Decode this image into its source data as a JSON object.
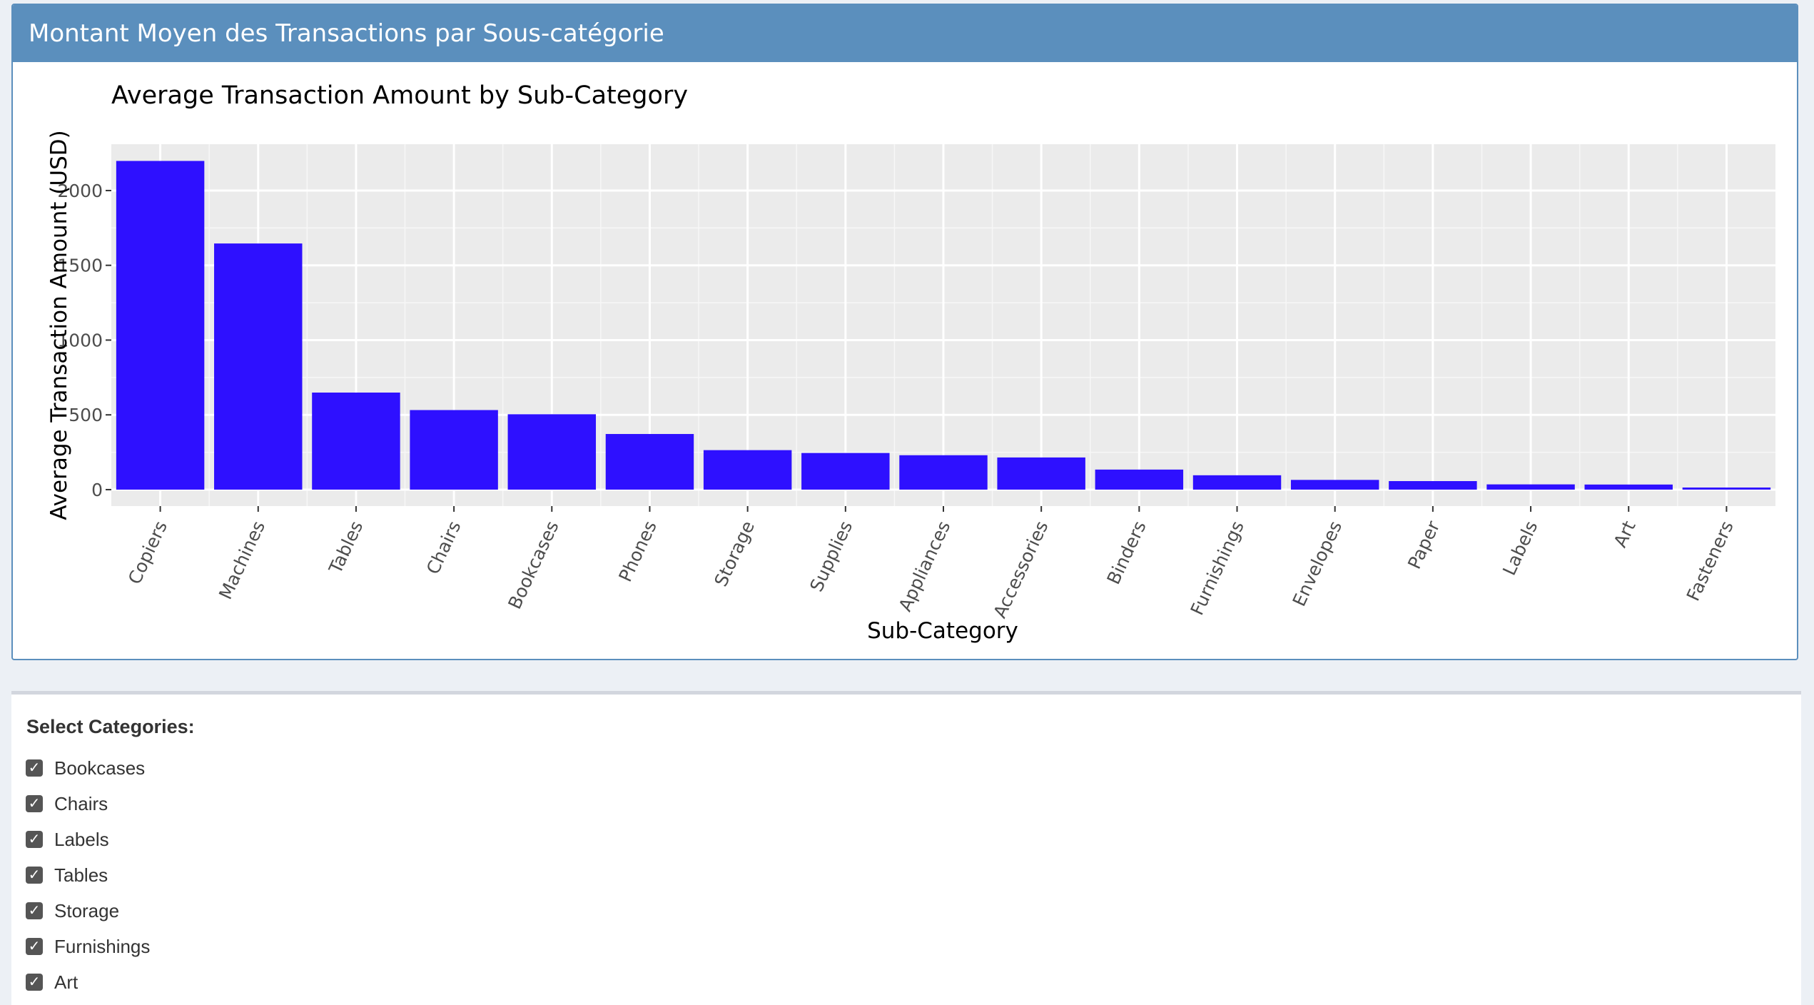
{
  "box": {
    "title": "Montant Moyen des Transactions par Sous-catégorie"
  },
  "chart_data": {
    "type": "bar",
    "title": "Average Transaction Amount by Sub-Category",
    "xlabel": "Sub-Category",
    "ylabel": "Average Transaction Amount (USD)",
    "categories": [
      "Copiers",
      "Machines",
      "Tables",
      "Chairs",
      "Bookcases",
      "Phones",
      "Storage",
      "Supplies",
      "Appliances",
      "Accessories",
      "Binders",
      "Furnishings",
      "Envelopes",
      "Paper",
      "Labels",
      "Art",
      "Fasteners"
    ],
    "values": [
      2198,
      1646,
      649,
      532,
      504,
      372,
      264,
      245,
      230,
      215,
      134,
      96,
      65,
      57,
      35,
      34,
      14
    ],
    "yticks": [
      0,
      500,
      1000,
      1500,
      2000
    ],
    "ylim": [
      -110,
      2310
    ],
    "bar_color": "#2e10ff",
    "plot_background": "#ebebeb",
    "grid": true
  },
  "filter": {
    "label": "Select Categories:",
    "options": [
      {
        "label": "Bookcases",
        "checked": true
      },
      {
        "label": "Chairs",
        "checked": true
      },
      {
        "label": "Labels",
        "checked": true
      },
      {
        "label": "Tables",
        "checked": true
      },
      {
        "label": "Storage",
        "checked": true
      },
      {
        "label": "Furnishings",
        "checked": true
      },
      {
        "label": "Art",
        "checked": true
      }
    ]
  },
  "colors": {
    "header": "#5b8fbd",
    "page_background": "#ecf0f5",
    "checkbox": "#555555"
  }
}
